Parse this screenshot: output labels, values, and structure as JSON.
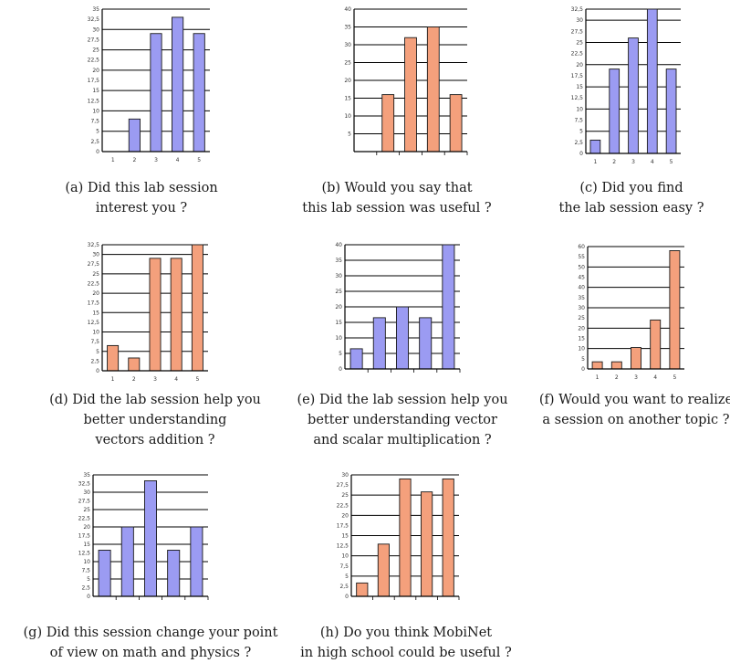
{
  "colors": {
    "blue": "#9b9bf2",
    "orange": "#f4a07c",
    "edge": "#1a1a1a",
    "grid": "#000000"
  },
  "chart_data": [
    {
      "type": "bar",
      "categories": [
        "1",
        "2",
        "3",
        "4",
        "5"
      ],
      "values": [
        0,
        8,
        29,
        33,
        29
      ],
      "ylim": [
        0,
        35
      ],
      "yticks": [
        "0",
        "2,5",
        "5",
        "7,5",
        "10",
        "12,5",
        "15",
        "17,5",
        "20",
        "22,5",
        "25",
        "27,5",
        "30",
        "32,5",
        "35"
      ],
      "gridlines": [
        35,
        30,
        25,
        20,
        15,
        10,
        5
      ],
      "show_xticks": true,
      "color": "blue",
      "caption": [
        "(a) Did this lab session",
        "interest you ?"
      ]
    },
    {
      "type": "bar",
      "categories": [
        "1",
        "2",
        "3",
        "4",
        "5"
      ],
      "values": [
        0,
        16,
        32,
        35,
        16
      ],
      "ylim": [
        0,
        40
      ],
      "yticks": [
        "",
        "5",
        "10",
        "15",
        "20",
        "25",
        "30",
        "35",
        "40"
      ],
      "gridlines": [
        40,
        35,
        30,
        25,
        20,
        15,
        10,
        5
      ],
      "show_xticks": false,
      "color": "orange",
      "caption": [
        "(b) Would you say that",
        "this lab session was useful ?"
      ]
    },
    {
      "type": "bar",
      "categories": [
        "1",
        "2",
        "3",
        "4",
        "5"
      ],
      "values": [
        3,
        19,
        26,
        32.5,
        19
      ],
      "ylim": [
        0,
        32.5
      ],
      "yticks": [
        "0",
        "2,5",
        "5",
        "7,5",
        "10",
        "12,5",
        "15",
        "17,5",
        "20",
        "22,5",
        "25",
        "27,5",
        "30",
        "32,5"
      ],
      "gridlines": [
        32.5,
        30,
        25,
        20,
        15,
        10,
        5
      ],
      "show_xticks": true,
      "color": "blue",
      "caption": [
        "(c) Did you find",
        "the lab session easy ?"
      ]
    },
    {
      "type": "bar",
      "categories": [
        "1",
        "2",
        "3",
        "4",
        "5"
      ],
      "values": [
        6.5,
        3.3,
        29,
        29,
        32.5
      ],
      "ylim": [
        0,
        32.5
      ],
      "yticks": [
        "0",
        "2,5",
        "5",
        "7,5",
        "10",
        "12,5",
        "15",
        "17,5",
        "20",
        "22,5",
        "25",
        "27,5",
        "30",
        "32,5"
      ],
      "gridlines": [
        32.5,
        30,
        25,
        20,
        15,
        10,
        5
      ],
      "show_xticks": true,
      "color": "orange",
      "caption": [
        "(d) Did the lab session help you",
        "better understanding",
        "vectors addition ?"
      ]
    },
    {
      "type": "bar",
      "categories": [
        "1",
        "2",
        "3",
        "4",
        "5"
      ],
      "values": [
        6.5,
        16.5,
        20,
        16.5,
        40
      ],
      "ylim": [
        0,
        40
      ],
      "yticks": [
        "0",
        "5",
        "10",
        "15",
        "20",
        "25",
        "30",
        "35",
        "40"
      ],
      "gridlines": [
        40,
        35,
        30,
        25,
        20,
        15,
        10,
        5
      ],
      "show_xticks": false,
      "color": "blue",
      "caption": [
        "(e) Did the lab session help you",
        "better understanding vector",
        "and scalar multiplication ?"
      ]
    },
    {
      "type": "bar",
      "categories": [
        "1",
        "2",
        "3",
        "4",
        "5"
      ],
      "values": [
        3.5,
        3.5,
        10.5,
        24,
        58
      ],
      "ylim": [
        0,
        60
      ],
      "yticks": [
        "0",
        "5",
        "10",
        "15",
        "20",
        "25",
        "30",
        "35",
        "40",
        "45",
        "50",
        "55",
        "60"
      ],
      "gridlines": [
        60,
        50,
        40,
        30,
        20,
        10
      ],
      "show_xticks": true,
      "color": "orange",
      "caption": [
        "(f) Would you want to realize",
        "a session on another topic ?"
      ]
    },
    {
      "type": "bar",
      "categories": [
        "1",
        "2",
        "3",
        "4",
        "5"
      ],
      "values": [
        13.3,
        20,
        33.3,
        13.3,
        20
      ],
      "ylim": [
        0,
        35
      ],
      "yticks": [
        "0",
        "2,5",
        "5",
        "7,5",
        "10",
        "12,5",
        "15",
        "17,5",
        "20",
        "22,5",
        "25",
        "27,5",
        "30",
        "32,5",
        "35"
      ],
      "gridlines": [
        35,
        30,
        25,
        20,
        15,
        10,
        5
      ],
      "show_xticks": false,
      "color": "blue",
      "caption": [
        "(g) Did this session change your point",
        "of view on math and physics ?"
      ]
    },
    {
      "type": "bar",
      "categories": [
        "1",
        "2",
        "3",
        "4",
        "5"
      ],
      "values": [
        3.3,
        12.9,
        29,
        25.8,
        29
      ],
      "ylim": [
        0,
        30
      ],
      "yticks": [
        "0",
        "2,5",
        "5",
        "7,5",
        "10",
        "12,5",
        "15",
        "17,5",
        "20",
        "22,5",
        "25",
        "27,5",
        "30"
      ],
      "gridlines": [
        30,
        25,
        20,
        15,
        10,
        5
      ],
      "show_xticks": false,
      "color": "orange",
      "caption": [
        "(h) Do you think MobiNet",
        "in high school could be useful ?"
      ]
    }
  ]
}
